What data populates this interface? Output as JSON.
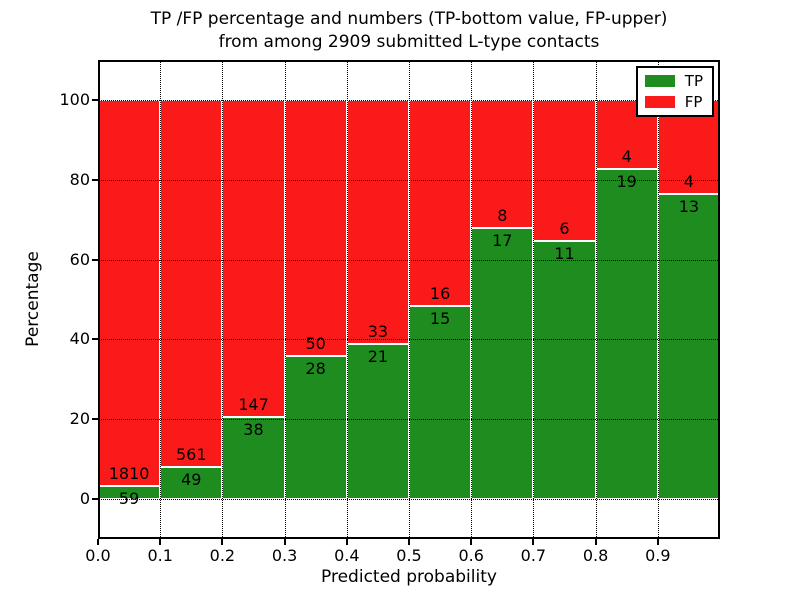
{
  "chart_data": {
    "type": "bar",
    "stacked": true,
    "normalized": "percent",
    "title_line1": "TP /FP percentage and numbers (TP-bottom value, FP-upper)",
    "title_line2": "from among 2909 submitted L-type contacts",
    "total_submitted": 2909,
    "xlabel": "Predicted probability",
    "ylabel": "Percentage",
    "x_tick_labels": [
      "0.0",
      "0.1",
      "0.2",
      "0.3",
      "0.4",
      "0.5",
      "0.6",
      "0.7",
      "0.8",
      "0.9"
    ],
    "y_ticks": [
      0,
      20,
      40,
      60,
      80,
      100
    ],
    "xlim": [
      0.0,
      1.0
    ],
    "ylim": [
      -10,
      110
    ],
    "bin_width": 0.1,
    "categories": [
      "0.0-0.1",
      "0.1-0.2",
      "0.2-0.3",
      "0.3-0.4",
      "0.4-0.5",
      "0.5-0.6",
      "0.6-0.7",
      "0.7-0.8",
      "0.8-0.9",
      "0.9-1.0"
    ],
    "series": [
      {
        "name": "TP",
        "color": "#1e8c1e",
        "values": [
          59,
          49,
          38,
          28,
          21,
          15,
          17,
          11,
          19,
          13
        ]
      },
      {
        "name": "FP",
        "color": "#fb1a1a",
        "values": [
          1810,
          561,
          147,
          50,
          33,
          16,
          8,
          6,
          4,
          4
        ]
      }
    ],
    "grid": true,
    "grid_style": "dotted",
    "bar_edge_color": "#ffffff",
    "legend": {
      "position": "upper-right",
      "entries": [
        {
          "label": "TP",
          "color": "#1e8c1e"
        },
        {
          "label": "FP",
          "color": "#fb1a1a"
        }
      ]
    }
  }
}
